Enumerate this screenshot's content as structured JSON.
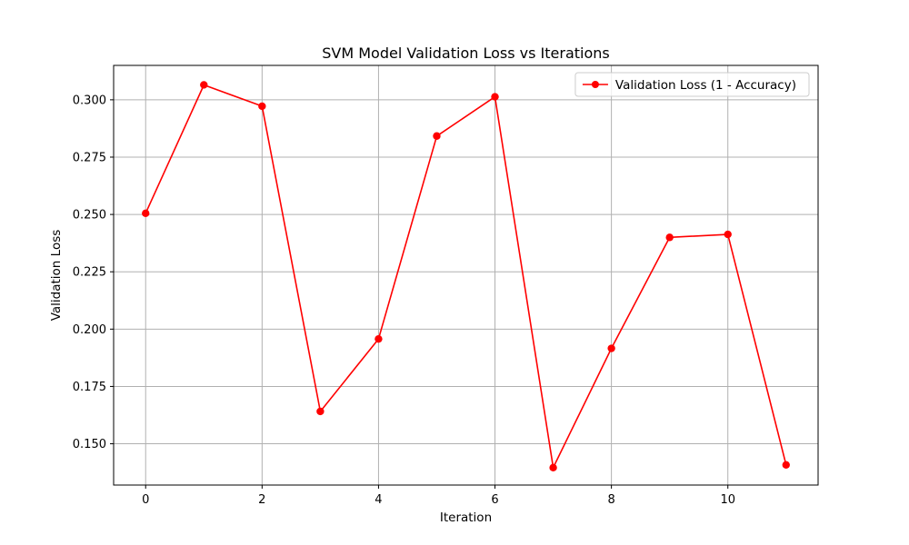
{
  "chart_data": {
    "type": "line",
    "title": "SVM Model Validation Loss vs Iterations",
    "xlabel": "Iteration",
    "ylabel": "Validation Loss",
    "xlim": [
      -0.55,
      11.55
    ],
    "ylim": [
      0.132,
      0.315
    ],
    "xticks": [
      0,
      2,
      4,
      6,
      8,
      10
    ],
    "xtick_labels": [
      "0",
      "2",
      "4",
      "6",
      "8",
      "10"
    ],
    "yticks": [
      0.15,
      0.175,
      0.2,
      0.225,
      0.25,
      0.275,
      0.3
    ],
    "ytick_labels": [
      "0.150",
      "0.175",
      "0.200",
      "0.225",
      "0.250",
      "0.275",
      "0.300"
    ],
    "grid": true,
    "legend_position": "top-right",
    "series": [
      {
        "name": "Validation Loss (1 - Accuracy)",
        "color": "#ff0000",
        "marker": "circle",
        "x": [
          0,
          1,
          2,
          3,
          4,
          5,
          6,
          7,
          8,
          9,
          10,
          11
        ],
        "y": [
          0.2505,
          0.3065,
          0.2972,
          0.1641,
          0.1957,
          0.2842,
          0.3013,
          0.1396,
          0.1916,
          0.24,
          0.2413,
          0.1408
        ]
      }
    ]
  }
}
